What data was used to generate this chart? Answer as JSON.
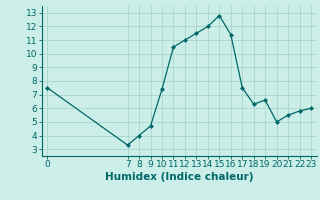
{
  "x": [
    0,
    7,
    8,
    9,
    10,
    11,
    12,
    13,
    14,
    15,
    16,
    17,
    18,
    19,
    20,
    21,
    22,
    23
  ],
  "y": [
    7.5,
    3.3,
    4.0,
    4.7,
    7.4,
    10.5,
    11.0,
    11.5,
    12.0,
    12.8,
    11.4,
    7.5,
    6.3,
    6.6,
    5.0,
    5.5,
    5.8,
    6.0
  ],
  "xticks": [
    0,
    7,
    8,
    9,
    10,
    11,
    12,
    13,
    14,
    15,
    16,
    17,
    18,
    19,
    20,
    21,
    22,
    23
  ],
  "yticks": [
    3,
    4,
    5,
    6,
    7,
    8,
    9,
    10,
    11,
    12,
    13
  ],
  "ylim": [
    2.5,
    13.5
  ],
  "xlim": [
    -0.5,
    23.5
  ],
  "xlabel": "Humidex (Indice chaleur)",
  "line_color": "#006868",
  "marker": "D",
  "marker_size": 2.0,
  "bg_color": "#cceee8",
  "grid_color": "#aad4cc",
  "tick_fontsize": 6.5,
  "label_fontsize": 7.5
}
